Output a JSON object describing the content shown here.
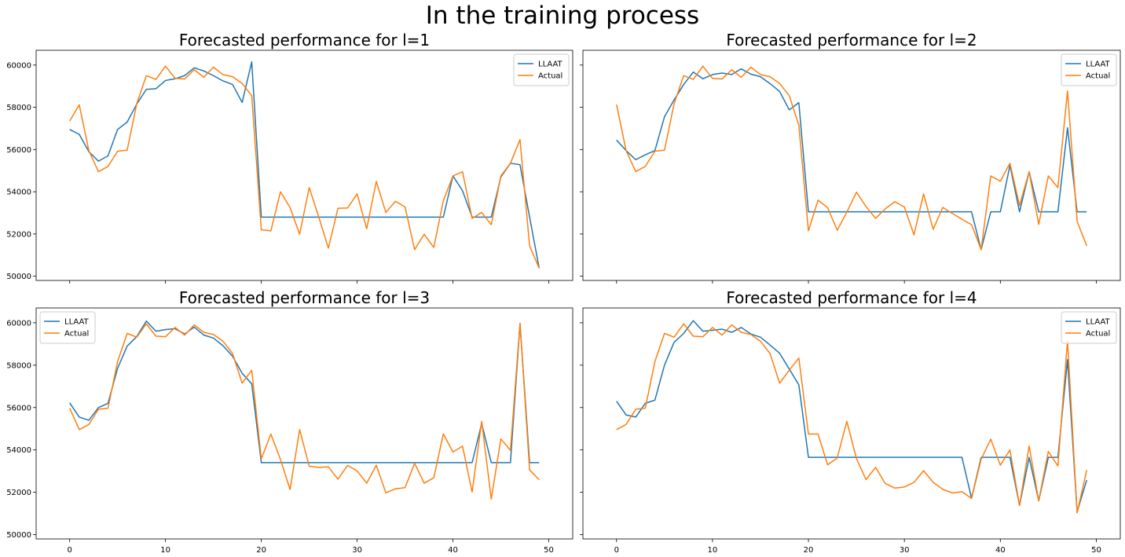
{
  "figure": {
    "suptitle": "In the training process"
  },
  "chart_data": [
    {
      "type": "line",
      "title": "Forecasted performance for l=1",
      "xlabel": "",
      "ylabel": "",
      "xlim": [
        -3.5,
        52.5
      ],
      "ylim": [
        49800,
        60700
      ],
      "xticks": [
        0,
        10,
        20,
        30,
        40,
        50
      ],
      "yticks": [
        50000,
        52000,
        54000,
        56000,
        58000,
        60000
      ],
      "show_xticklabels": false,
      "show_yticklabels": true,
      "legend": "upper right",
      "x": [
        0,
        1,
        2,
        3,
        4,
        5,
        6,
        7,
        8,
        9,
        10,
        11,
        12,
        13,
        14,
        15,
        16,
        17,
        18,
        19,
        20,
        21,
        22,
        23,
        24,
        25,
        26,
        27,
        28,
        29,
        30,
        31,
        32,
        33,
        34,
        35,
        36,
        37,
        38,
        39,
        40,
        41,
        42,
        43,
        44,
        45,
        46,
        47,
        48,
        49
      ],
      "series": [
        {
          "name": "LLAAT",
          "color": "#1f77b4",
          "values": [
            56950,
            56720,
            55900,
            55450,
            55700,
            56950,
            57300,
            58150,
            58850,
            58880,
            59270,
            59350,
            59500,
            59870,
            59720,
            59500,
            59250,
            59080,
            58230,
            60150,
            52800,
            52800,
            52800,
            52800,
            52800,
            52800,
            52800,
            52800,
            52800,
            52800,
            52800,
            52800,
            52800,
            52800,
            52800,
            52800,
            52800,
            52800,
            52800,
            52800,
            54750,
            54050,
            52800,
            52800,
            52800,
            54700,
            55350,
            55280,
            52800,
            50380
          ]
        },
        {
          "name": "Actual",
          "color": "#ff7f0e",
          "values": [
            57350,
            58120,
            55950,
            54950,
            55200,
            55920,
            55970,
            58170,
            59500,
            59320,
            59950,
            59370,
            59340,
            59780,
            59420,
            59900,
            59550,
            59450,
            59130,
            58550,
            52200,
            52150,
            54000,
            53250,
            51990,
            54200,
            52800,
            51330,
            53220,
            53230,
            53900,
            52250,
            54490,
            53020,
            53550,
            53280,
            51260,
            51990,
            51360,
            53580,
            54750,
            54950,
            52740,
            53020,
            52440,
            54750,
            55350,
            56470,
            51440,
            50380
          ]
        }
      ]
    },
    {
      "type": "line",
      "title": "Forecasted performance for l=2",
      "xlabel": "",
      "ylabel": "",
      "xlim": [
        -3.5,
        52.5
      ],
      "ylim": [
        49800,
        60700
      ],
      "xticks": [
        0,
        10,
        20,
        30,
        40,
        50
      ],
      "yticks": [
        50000,
        52000,
        54000,
        56000,
        58000,
        60000
      ],
      "show_xticklabels": false,
      "show_yticklabels": false,
      "legend": "upper right",
      "x": [
        0,
        1,
        2,
        3,
        4,
        5,
        6,
        7,
        8,
        9,
        10,
        11,
        12,
        13,
        14,
        15,
        16,
        17,
        18,
        19,
        20,
        21,
        22,
        23,
        24,
        25,
        26,
        27,
        28,
        29,
        30,
        31,
        32,
        33,
        34,
        35,
        36,
        37,
        38,
        39,
        40,
        41,
        42,
        43,
        44,
        45,
        46,
        47,
        48,
        49
      ],
      "series": [
        {
          "name": "LLAAT",
          "color": "#1f77b4",
          "values": [
            56450,
            55950,
            55520,
            55750,
            55950,
            57550,
            58350,
            59080,
            59670,
            59350,
            59550,
            59620,
            59550,
            59820,
            59570,
            59450,
            59120,
            58750,
            57880,
            58220,
            53050,
            53050,
            53050,
            53050,
            53050,
            53050,
            53050,
            53050,
            53050,
            53050,
            53050,
            53050,
            53050,
            53050,
            53050,
            53050,
            53050,
            53050,
            51260,
            53050,
            53050,
            55250,
            53050,
            54950,
            53050,
            53050,
            53050,
            57030,
            53050,
            53050
          ]
        },
        {
          "name": "Actual",
          "color": "#ff7f0e",
          "values": [
            58130,
            55950,
            54960,
            55200,
            55920,
            55970,
            58170,
            59500,
            59320,
            59950,
            59370,
            59340,
            59780,
            59420,
            59900,
            59550,
            59450,
            59130,
            58550,
            57150,
            52150,
            53600,
            53250,
            52180,
            53030,
            53980,
            53300,
            52740,
            53190,
            53530,
            53280,
            51960,
            53900,
            52220,
            53260,
            52970,
            52700,
            52440,
            51260,
            54750,
            54500,
            55350,
            53350,
            54950,
            52450,
            54750,
            54200,
            58770,
            52600,
            51440
          ]
        }
      ]
    },
    {
      "type": "line",
      "title": "Forecasted performance for l=3",
      "xlabel": "",
      "ylabel": "",
      "xlim": [
        -3.5,
        52.5
      ],
      "ylim": [
        49800,
        60700
      ],
      "xticks": [
        0,
        10,
        20,
        30,
        40,
        50
      ],
      "yticks": [
        50000,
        52000,
        54000,
        56000,
        58000,
        60000
      ],
      "show_xticklabels": true,
      "show_yticklabels": true,
      "legend": "upper left",
      "x": [
        0,
        1,
        2,
        3,
        4,
        5,
        6,
        7,
        8,
        9,
        10,
        11,
        12,
        13,
        14,
        15,
        16,
        17,
        18,
        19,
        20,
        21,
        22,
        23,
        24,
        25,
        26,
        27,
        28,
        29,
        30,
        31,
        32,
        33,
        34,
        35,
        36,
        37,
        38,
        39,
        40,
        41,
        42,
        43,
        44,
        45,
        46,
        47,
        48,
        49
      ],
      "series": [
        {
          "name": "LLAAT",
          "color": "#1f77b4",
          "values": [
            56220,
            55550,
            55400,
            56000,
            56200,
            57850,
            58900,
            59350,
            60080,
            59600,
            59680,
            59720,
            59470,
            59800,
            59420,
            59280,
            58920,
            58420,
            57620,
            57120,
            53400,
            53400,
            53400,
            53400,
            53400,
            53400,
            53400,
            53400,
            53400,
            53400,
            53400,
            53400,
            53400,
            53400,
            53400,
            53400,
            53400,
            53400,
            53400,
            53400,
            53400,
            53400,
            53400,
            55250,
            53400,
            53400,
            53400,
            59950,
            53400,
            53400
          ]
        },
        {
          "name": "Actual",
          "color": "#ff7f0e",
          "values": [
            55970,
            54960,
            55200,
            55920,
            55970,
            58170,
            59500,
            59320,
            59950,
            59370,
            59340,
            59780,
            59420,
            59900,
            59550,
            59450,
            59130,
            58550,
            57150,
            57760,
            53580,
            54750,
            53550,
            52130,
            54960,
            53230,
            53180,
            53200,
            52620,
            53270,
            53010,
            52430,
            53280,
            51970,
            52170,
            52220,
            53370,
            52430,
            52690,
            54760,
            53900,
            54180,
            52010,
            55350,
            51680,
            54520,
            53980,
            59980,
            53060,
            52590
          ]
        }
      ]
    },
    {
      "type": "line",
      "title": "Forecasted performance for l=4",
      "xlabel": "",
      "ylabel": "",
      "xlim": [
        -3.5,
        52.5
      ],
      "ylim": [
        49800,
        60700
      ],
      "xticks": [
        0,
        10,
        20,
        30,
        40,
        50
      ],
      "yticks": [
        50000,
        52000,
        54000,
        56000,
        58000,
        60000
      ],
      "show_xticklabels": true,
      "show_yticklabels": false,
      "legend": "upper right",
      "x": [
        0,
        1,
        2,
        3,
        4,
        5,
        6,
        7,
        8,
        9,
        10,
        11,
        12,
        13,
        14,
        15,
        16,
        17,
        18,
        19,
        20,
        21,
        22,
        23,
        24,
        25,
        26,
        27,
        28,
        29,
        30,
        31,
        32,
        33,
        34,
        35,
        36,
        37,
        38,
        39,
        40,
        41,
        42,
        43,
        44,
        45,
        46,
        47,
        48,
        49
      ],
      "series": [
        {
          "name": "LLAAT",
          "color": "#1f77b4",
          "values": [
            56300,
            55650,
            55550,
            56200,
            56350,
            58000,
            59080,
            59500,
            60100,
            59600,
            59650,
            59700,
            59550,
            59780,
            59470,
            59320,
            58950,
            58560,
            57820,
            57070,
            53650,
            53650,
            53650,
            53650,
            53650,
            53650,
            53650,
            53650,
            53650,
            53650,
            53650,
            53650,
            53650,
            53650,
            53650,
            53650,
            53650,
            51720,
            53650,
            53650,
            53650,
            53650,
            51380,
            53650,
            51600,
            53650,
            53650,
            58260,
            51070,
            52580
          ]
        },
        {
          "name": "Actual",
          "color": "#ff7f0e",
          "values": [
            54960,
            55200,
            55920,
            55970,
            58170,
            59500,
            59320,
            59950,
            59370,
            59340,
            59780,
            59420,
            59900,
            59550,
            59450,
            59130,
            58550,
            57150,
            57760,
            58340,
            54750,
            54750,
            53300,
            53620,
            55350,
            53600,
            52600,
            53180,
            52420,
            52200,
            52250,
            52470,
            53020,
            52470,
            52140,
            51970,
            52030,
            51710,
            53560,
            54510,
            53280,
            54000,
            51380,
            54190,
            51600,
            53930,
            53240,
            59170,
            51030,
            53050
          ]
        }
      ]
    }
  ]
}
